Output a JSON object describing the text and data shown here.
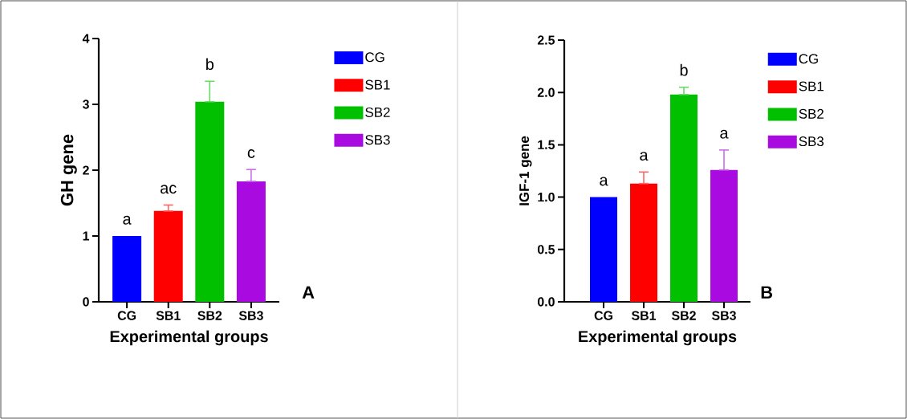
{
  "chart_data": [
    {
      "type": "bar",
      "xlabel": "Experimental groups",
      "ylabel": "GH gene",
      "categories": [
        "CG",
        "SB1",
        "SB2",
        "SB3"
      ],
      "series": [
        {
          "name": "CG",
          "color": "#0000ff",
          "values": [
            1.0,
            null,
            null,
            null
          ]
        },
        {
          "name": "SB1",
          "color": "#ff0000",
          "values": [
            null,
            1.38,
            null,
            null
          ],
          "errors": [
            null,
            [
              1.38,
              1.47
            ],
            null,
            null
          ]
        },
        {
          "name": "SB2",
          "color": "#00c000",
          "values": [
            null,
            null,
            3.04,
            null
          ],
          "errors": [
            null,
            null,
            [
              3.04,
              3.35
            ],
            null
          ]
        },
        {
          "name": "SB3",
          "color": "#a80ae0",
          "values": [
            null,
            null,
            null,
            1.83
          ],
          "errors": [
            null,
            null,
            null,
            [
              1.83,
              2.01
            ]
          ]
        }
      ],
      "ylim": [
        0,
        4
      ],
      "yticks": [
        0,
        1,
        2,
        3,
        4
      ],
      "legend": "right",
      "annotations": [
        {
          "text": "a",
          "x": "CG",
          "y": 1.0
        },
        {
          "text": "ac",
          "x": "SB1",
          "y": 1.47
        },
        {
          "text": "b",
          "x": "SB2",
          "y": 3.35
        },
        {
          "text": "c",
          "x": "SB3",
          "y": 2.01
        },
        "A"
      ]
    },
    {
      "type": "bar",
      "xlabel": "Experimental groups",
      "ylabel": "IGF-1 gene",
      "categories": [
        "CG",
        "SB1",
        "SB2",
        "SB3"
      ],
      "series": [
        {
          "name": "CG",
          "color": "#0000ff",
          "values": [
            1.0,
            null,
            null,
            null
          ]
        },
        {
          "name": "SB1",
          "color": "#ff0000",
          "values": [
            null,
            1.13,
            null,
            null
          ],
          "errors": [
            null,
            [
              1.13,
              1.24
            ],
            null,
            null
          ]
        },
        {
          "name": "SB2",
          "color": "#00c000",
          "values": [
            null,
            null,
            1.98,
            null
          ],
          "errors": [
            null,
            null,
            [
              1.98,
              2.05
            ],
            null
          ]
        },
        {
          "name": "SB3",
          "color": "#a80ae0",
          "values": [
            null,
            null,
            null,
            1.26
          ],
          "errors": [
            null,
            null,
            null,
            [
              1.26,
              1.45
            ]
          ]
        }
      ],
      "ylim": [
        0,
        2.5
      ],
      "yticks": [
        {
          "value": 0,
          "label": "0.0"
        },
        {
          "value": 0.5,
          "label": "0.5"
        },
        {
          "value": 1,
          "label": "1.0"
        },
        {
          "value": 1.5,
          "label": "1.5"
        },
        {
          "value": 2,
          "label": "2.0"
        },
        {
          "value": 2.5,
          "label": "2.5"
        }
      ],
      "legend": "right",
      "annotations": [
        {
          "text": "a",
          "x": "CG",
          "y": 1.0
        },
        {
          "text": "a",
          "x": "SB1",
          "y": 1.24
        },
        {
          "text": "b",
          "x": "SB2",
          "y": 2.05
        },
        {
          "text": "a",
          "x": "SB3",
          "y": 1.45
        },
        "B"
      ]
    }
  ]
}
